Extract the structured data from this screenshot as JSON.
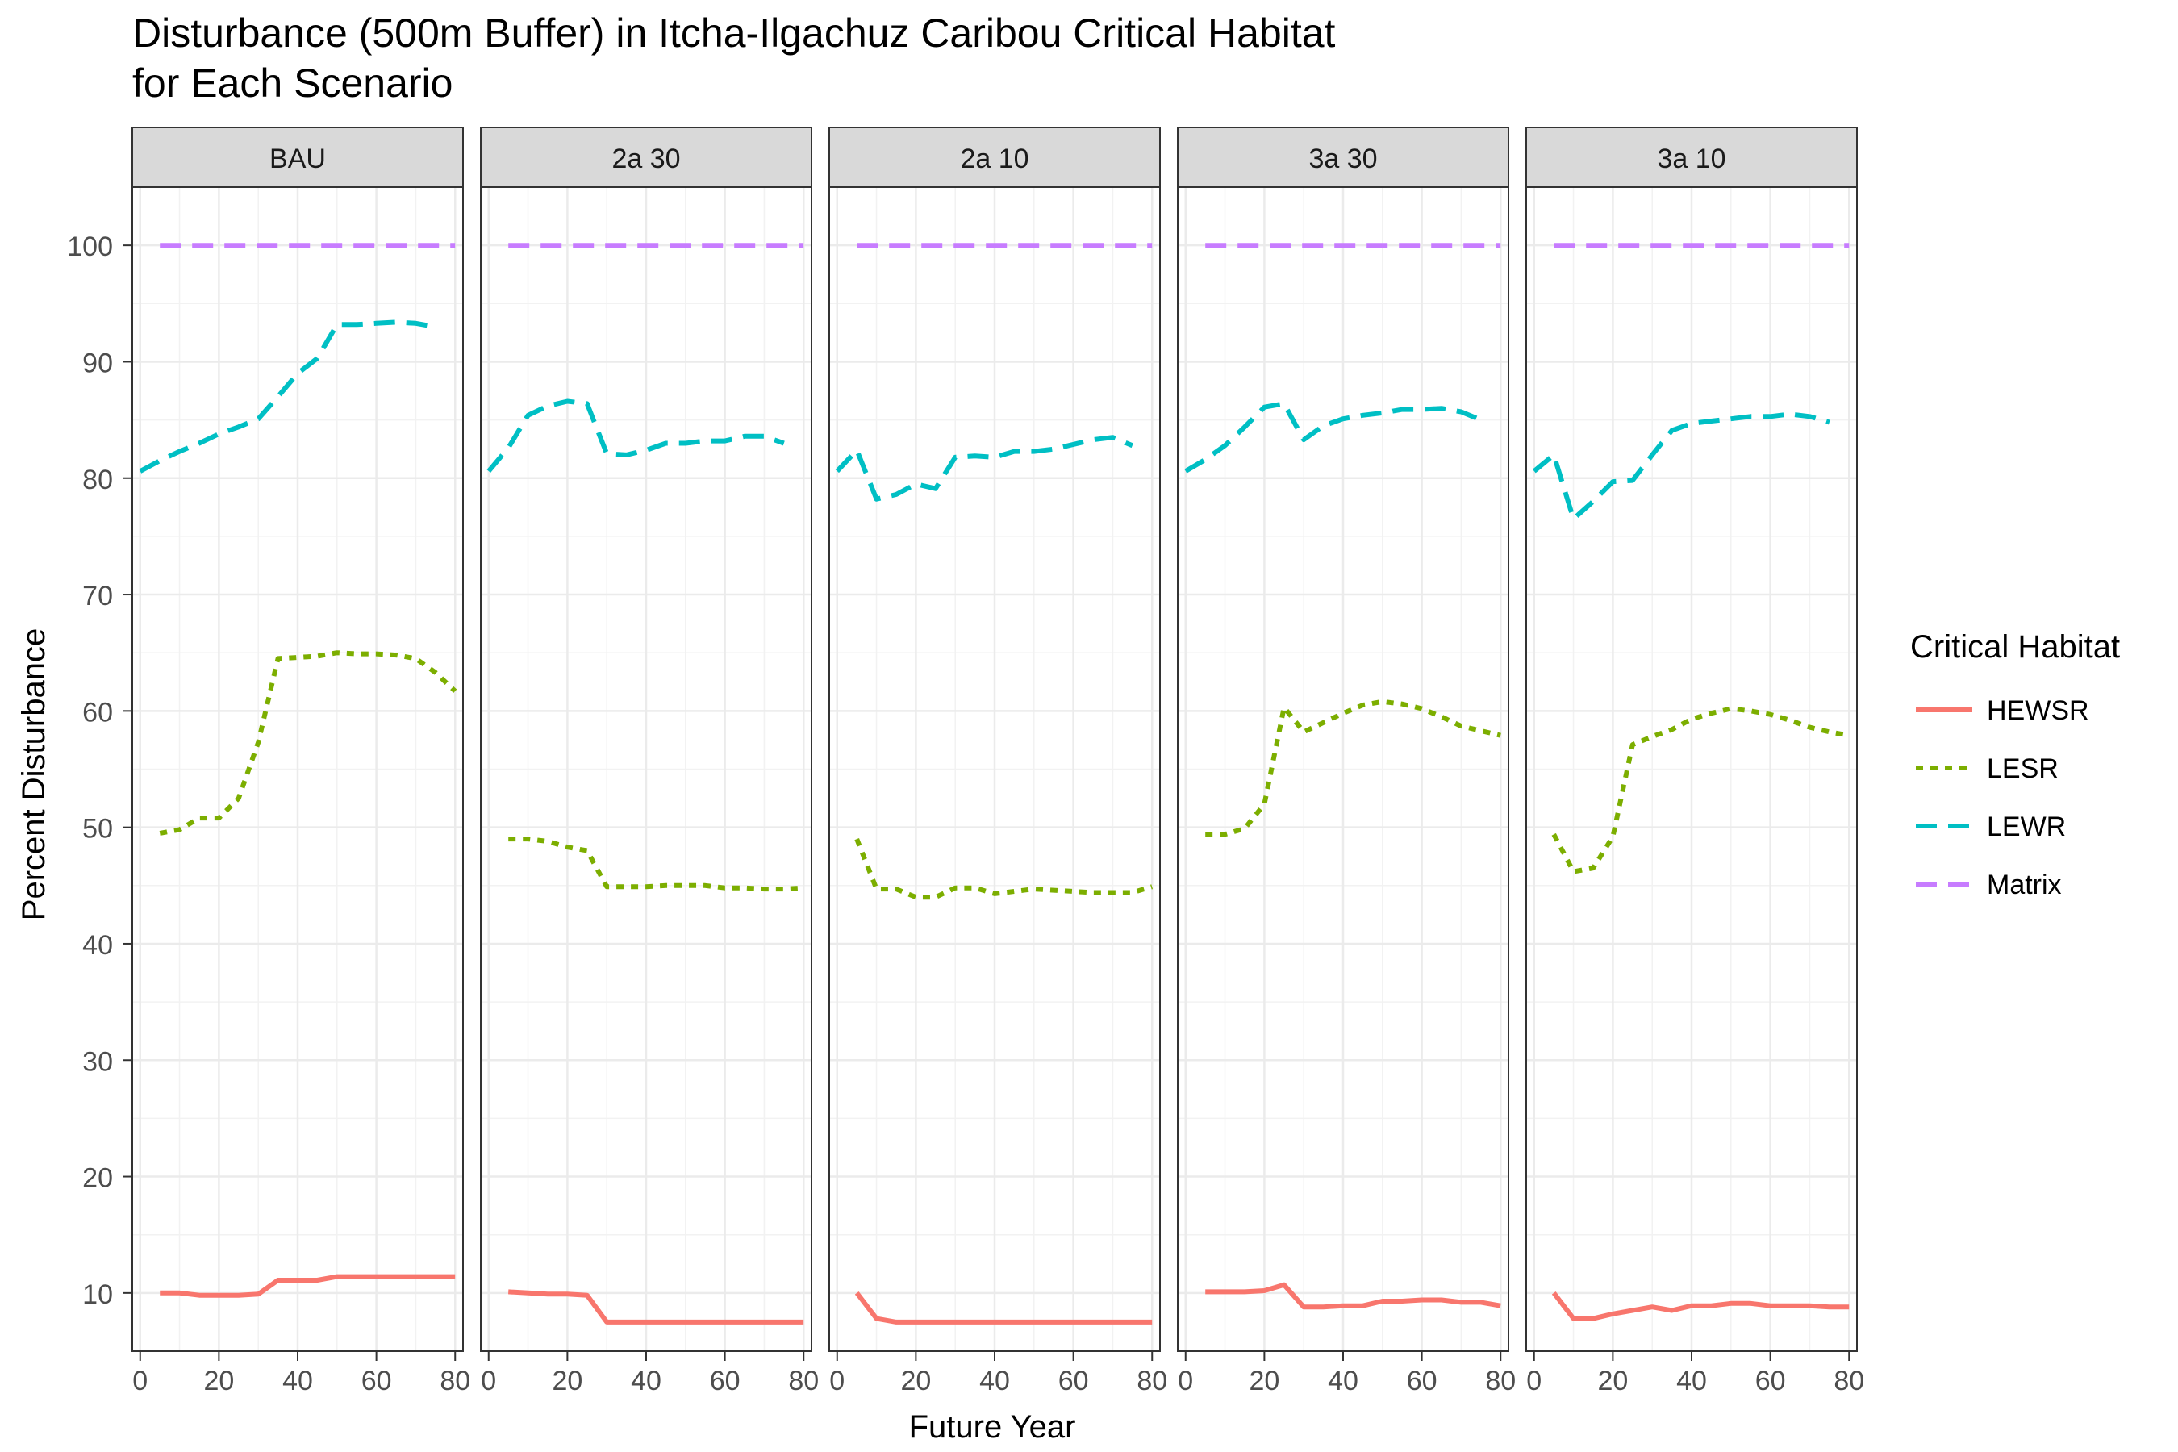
{
  "chart_data": {
    "type": "line",
    "title": "Disturbance (500m Buffer) in Itcha-Ilgachuz Caribou Critical Habitat",
    "subtitle": "for Each Scenario",
    "xlabel": "Future Year",
    "ylabel": "Percent Disturbance",
    "xlim": [
      -2,
      82
    ],
    "ylim": [
      5,
      105
    ],
    "x_ticks": [
      "0",
      "20",
      "40",
      "60",
      "80"
    ],
    "y_ticks": [
      "10",
      "20",
      "30",
      "40",
      "50",
      "60",
      "70",
      "80",
      "90",
      "100"
    ],
    "grid": true,
    "legend": {
      "title": "Critical Habitat",
      "position": "right",
      "entries": [
        "HEWSR",
        "LESR",
        "LEWR",
        "Matrix"
      ]
    },
    "series_styles": [
      {
        "name": "HEWSR",
        "color": "#F8766D",
        "dash": "solid"
      },
      {
        "name": "LESR",
        "color": "#7CAE00",
        "dash": "dotted"
      },
      {
        "name": "LEWR",
        "color": "#00BFC4",
        "dash": "dashed"
      },
      {
        "name": "Matrix",
        "color": "#C77CFF",
        "dash": "dashed"
      }
    ],
    "panels": [
      {
        "label": "BAU",
        "series": [
          {
            "name": "HEWSR",
            "x": [
              5,
              10,
              15,
              20,
              25,
              30,
              35,
              40,
              45,
              50,
              55,
              60,
              65,
              70,
              75,
              80
            ],
            "values": [
              10.0,
              10.0,
              9.8,
              9.8,
              9.8,
              9.9,
              11.1,
              11.1,
              11.1,
              11.4,
              11.4,
              11.4,
              11.4,
              11.4,
              11.4,
              11.4
            ]
          },
          {
            "name": "LESR",
            "x": [
              5,
              10,
              15,
              20,
              25,
              30,
              35,
              40,
              45,
              50,
              55,
              60,
              65,
              70,
              75,
              80
            ],
            "values": [
              49.5,
              49.8,
              50.8,
              50.8,
              52.5,
              57.3,
              64.5,
              64.6,
              64.7,
              65.0,
              64.9,
              64.9,
              64.8,
              64.5,
              63.3,
              61.7
            ]
          },
          {
            "name": "LEWR",
            "x": [
              0,
              5,
              10,
              15,
              20,
              25,
              30,
              35,
              40,
              45,
              50,
              55,
              60,
              65,
              70,
              75
            ],
            "values": [
              80.6,
              81.5,
              82.3,
              83.0,
              83.8,
              84.4,
              85.1,
              87.0,
              89.0,
              90.3,
              93.2,
              93.2,
              93.3,
              93.4,
              93.3,
              93.0
            ]
          },
          {
            "name": "Matrix",
            "x": [
              5,
              80
            ],
            "values": [
              100,
              100
            ]
          }
        ]
      },
      {
        "label": "2a 30",
        "series": [
          {
            "name": "HEWSR",
            "x": [
              5,
              10,
              15,
              20,
              25,
              30,
              35,
              40,
              45,
              50,
              55,
              60,
              65,
              70,
              75,
              80
            ],
            "values": [
              10.1,
              10.0,
              9.9,
              9.9,
              9.8,
              7.5,
              7.5,
              7.5,
              7.5,
              7.5,
              7.5,
              7.5,
              7.5,
              7.5,
              7.5,
              7.5
            ]
          },
          {
            "name": "LESR",
            "x": [
              5,
              10,
              15,
              20,
              25,
              30,
              35,
              40,
              45,
              50,
              55,
              60,
              65,
              70,
              75,
              80
            ],
            "values": [
              49.0,
              49.0,
              48.8,
              48.3,
              48.0,
              44.9,
              44.9,
              44.9,
              45.0,
              45.0,
              45.0,
              44.8,
              44.8,
              44.7,
              44.7,
              44.8
            ]
          },
          {
            "name": "LEWR",
            "x": [
              0,
              5,
              10,
              15,
              20,
              25,
              30,
              35,
              40,
              45,
              50,
              55,
              60,
              65,
              70,
              75
            ],
            "values": [
              80.6,
              82.6,
              85.4,
              86.2,
              86.6,
              86.4,
              82.1,
              82.0,
              82.4,
              83.0,
              83.0,
              83.2,
              83.2,
              83.6,
              83.6,
              83.0
            ]
          },
          {
            "name": "Matrix",
            "x": [
              5,
              80
            ],
            "values": [
              100,
              100
            ]
          }
        ]
      },
      {
        "label": "2a 10",
        "series": [
          {
            "name": "HEWSR",
            "x": [
              5,
              10,
              15,
              20,
              25,
              30,
              35,
              40,
              45,
              50,
              55,
              60,
              65,
              70,
              75,
              80
            ],
            "values": [
              10.0,
              7.8,
              7.5,
              7.5,
              7.5,
              7.5,
              7.5,
              7.5,
              7.5,
              7.5,
              7.5,
              7.5,
              7.5,
              7.5,
              7.5,
              7.5
            ]
          },
          {
            "name": "LESR",
            "x": [
              5,
              10,
              15,
              20,
              25,
              30,
              35,
              40,
              45,
              50,
              55,
              60,
              65,
              70,
              75,
              80
            ],
            "values": [
              49.0,
              44.7,
              44.7,
              44.0,
              44.0,
              44.8,
              44.8,
              44.3,
              44.5,
              44.7,
              44.6,
              44.5,
              44.4,
              44.4,
              44.4,
              44.9
            ]
          },
          {
            "name": "LEWR",
            "x": [
              0,
              5,
              10,
              15,
              20,
              25,
              30,
              35,
              40,
              45,
              50,
              55,
              60,
              65,
              70,
              75
            ],
            "values": [
              80.6,
              82.4,
              78.2,
              78.6,
              79.5,
              79.1,
              81.8,
              81.9,
              81.8,
              82.3,
              82.3,
              82.5,
              82.9,
              83.3,
              83.5,
              82.8
            ]
          },
          {
            "name": "Matrix",
            "x": [
              5,
              80
            ],
            "values": [
              100,
              100
            ]
          }
        ]
      },
      {
        "label": "3a 30",
        "series": [
          {
            "name": "HEWSR",
            "x": [
              5,
              10,
              15,
              20,
              25,
              30,
              35,
              40,
              45,
              50,
              55,
              60,
              65,
              70,
              75,
              80
            ],
            "values": [
              10.1,
              10.1,
              10.1,
              10.2,
              10.7,
              8.8,
              8.8,
              8.9,
              8.9,
              9.3,
              9.3,
              9.4,
              9.4,
              9.2,
              9.2,
              8.9
            ]
          },
          {
            "name": "LESR",
            "x": [
              5,
              10,
              15,
              20,
              25,
              30,
              35,
              40,
              45,
              50,
              55,
              60,
              65,
              70,
              75,
              80
            ],
            "values": [
              49.4,
              49.4,
              49.9,
              52.0,
              60.3,
              58.2,
              59.0,
              59.8,
              60.5,
              60.8,
              60.6,
              60.2,
              59.5,
              58.7,
              58.3,
              57.9
            ]
          },
          {
            "name": "LEWR",
            "x": [
              0,
              5,
              10,
              15,
              20,
              25,
              30,
              35,
              40,
              45,
              50,
              55,
              60,
              65,
              70,
              75
            ],
            "values": [
              80.6,
              81.6,
              82.8,
              84.4,
              86.1,
              86.4,
              83.3,
              84.5,
              85.1,
              85.4,
              85.6,
              85.9,
              85.9,
              86.0,
              85.7,
              85.0
            ]
          },
          {
            "name": "Matrix",
            "x": [
              5,
              80
            ],
            "values": [
              100,
              100
            ]
          }
        ]
      },
      {
        "label": "3a 10",
        "series": [
          {
            "name": "HEWSR",
            "x": [
              5,
              10,
              15,
              20,
              25,
              30,
              35,
              40,
              45,
              50,
              55,
              60,
              65,
              70,
              75,
              80
            ],
            "values": [
              10.0,
              7.8,
              7.8,
              8.2,
              8.5,
              8.8,
              8.5,
              8.9,
              8.9,
              9.1,
              9.1,
              8.9,
              8.9,
              8.9,
              8.8,
              8.8
            ]
          },
          {
            "name": "LESR",
            "x": [
              5,
              10,
              15,
              20,
              25,
              30,
              35,
              40,
              45,
              50,
              55,
              60,
              65,
              70,
              75,
              80
            ],
            "values": [
              49.4,
              46.2,
              46.5,
              49.2,
              57.1,
              57.8,
              58.4,
              59.3,
              59.8,
              60.2,
              60.0,
              59.7,
              59.2,
              58.6,
              58.2,
              57.9
            ]
          },
          {
            "name": "LEWR",
            "x": [
              0,
              5,
              10,
              15,
              20,
              25,
              30,
              35,
              40,
              45,
              50,
              55,
              60,
              65,
              70,
              75
            ],
            "values": [
              80.6,
              82.0,
              76.5,
              78.0,
              79.7,
              79.8,
              82.0,
              84.1,
              84.7,
              84.9,
              85.1,
              85.3,
              85.3,
              85.5,
              85.3,
              84.8
            ]
          },
          {
            "name": "Matrix",
            "x": [
              5,
              80
            ],
            "values": [
              100,
              100
            ]
          }
        ]
      }
    ]
  }
}
